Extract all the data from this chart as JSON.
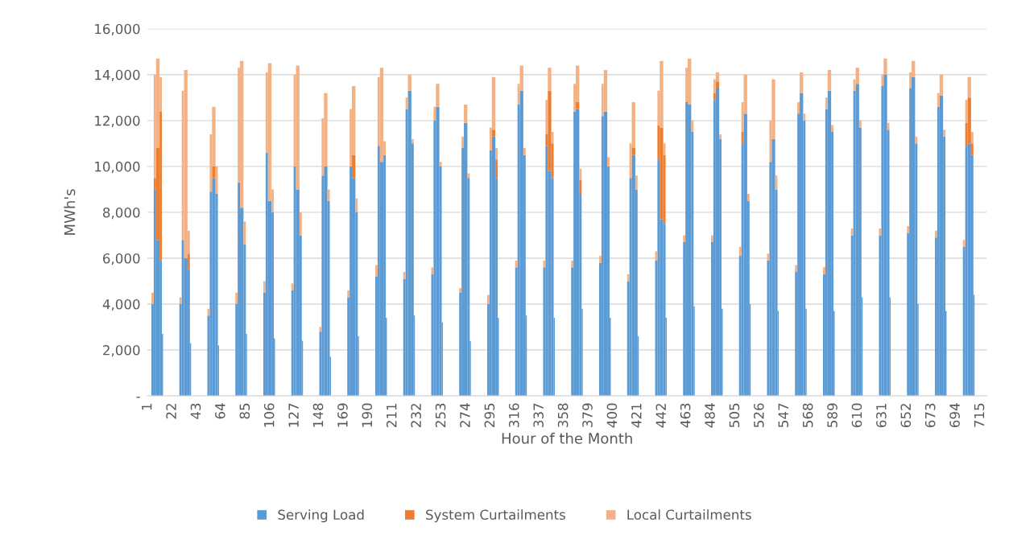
{
  "chart_data": {
    "type": "bar",
    "stacked": true,
    "xlabel": "Hour of the Month",
    "ylabel": "MWh's",
    "x": [
      3,
      4,
      6,
      8,
      11,
      13,
      14,
      27,
      28,
      30,
      32,
      35,
      37,
      38,
      51,
      52,
      54,
      56,
      59,
      61,
      62,
      75,
      76,
      78,
      80,
      83,
      85,
      86,
      99,
      100,
      102,
      104,
      107,
      109,
      110,
      123,
      124,
      126,
      128,
      131,
      133,
      134,
      147,
      148,
      150,
      152,
      155,
      157,
      158,
      171,
      172,
      174,
      176,
      179,
      181,
      182,
      195,
      196,
      198,
      200,
      203,
      205,
      206,
      219,
      220,
      222,
      224,
      227,
      229,
      230,
      243,
      244,
      246,
      248,
      251,
      253,
      254,
      267,
      268,
      270,
      272,
      275,
      277,
      278,
      291,
      292,
      294,
      296,
      299,
      301,
      302,
      315,
      316,
      318,
      320,
      323,
      325,
      326,
      339,
      340,
      342,
      344,
      347,
      349,
      350,
      363,
      364,
      366,
      368,
      371,
      373,
      374,
      387,
      388,
      390,
      392,
      395,
      397,
      398,
      411,
      412,
      414,
      416,
      419,
      421,
      422,
      435,
      436,
      438,
      440,
      443,
      445,
      446,
      459,
      460,
      462,
      464,
      467,
      469,
      470,
      483,
      484,
      486,
      488,
      491,
      493,
      494,
      507,
      508,
      510,
      512,
      515,
      517,
      518,
      531,
      532,
      534,
      536,
      539,
      541,
      542,
      555,
      556,
      558,
      560,
      563,
      565,
      566,
      579,
      580,
      582,
      584,
      587,
      589,
      590,
      603,
      604,
      606,
      608,
      611,
      613,
      614,
      627,
      628,
      630,
      632,
      635,
      637,
      638,
      651,
      652,
      654,
      656,
      659,
      661,
      662,
      675,
      676,
      678,
      680,
      683,
      685,
      686,
      699,
      700,
      702,
      704,
      707,
      709,
      710
    ],
    "series": [
      {
        "name": "Serving Load",
        "color": "#5b9bd5",
        "values": [
          0,
          4000,
          9000,
          6800,
          5900,
          2700,
          0,
          0,
          4000,
          6800,
          6000,
          5500,
          2300,
          0,
          0,
          3500,
          8900,
          9500,
          8800,
          2200,
          0,
          0,
          4000,
          9300,
          8200,
          6600,
          2700,
          0,
          0,
          4500,
          10600,
          8500,
          8000,
          2500,
          0,
          0,
          4600,
          10000,
          9000,
          7000,
          2400,
          0,
          0,
          2800,
          9600,
          10000,
          8500,
          1700,
          0,
          0,
          4300,
          10000,
          9500,
          8000,
          2600,
          0,
          0,
          5200,
          10900,
          10200,
          10500,
          3400,
          0,
          0,
          5100,
          12500,
          13300,
          11000,
          3500,
          0,
          0,
          5300,
          12000,
          12600,
          10000,
          3200,
          0,
          0,
          4500,
          10800,
          11900,
          9500,
          2400,
          0,
          0,
          4000,
          10700,
          11300,
          9500,
          3400,
          0,
          0,
          5600,
          12700,
          13300,
          10500,
          3500,
          0,
          0,
          5600,
          10900,
          9800,
          9500,
          3400,
          0,
          0,
          5600,
          12400,
          12500,
          8800,
          3800,
          0,
          0,
          5800,
          12200,
          12400,
          10000,
          3400,
          0,
          0,
          5000,
          9500,
          10500,
          9000,
          2600,
          0,
          0,
          5900,
          10300,
          7700,
          7500,
          3400,
          0,
          0,
          6700,
          12800,
          12700,
          11500,
          3900,
          0,
          0,
          6700,
          12900,
          13400,
          11200,
          3800,
          0,
          0,
          6100,
          11000,
          12300,
          8500,
          4000,
          0,
          0,
          5900,
          10200,
          11200,
          9000,
          3700,
          0,
          0,
          5400,
          12300,
          13200,
          12000,
          3800,
          0,
          0,
          5300,
          12500,
          13300,
          11500,
          3700,
          0,
          0,
          7000,
          13300,
          13600,
          11700,
          4300,
          0,
          0,
          7000,
          13500,
          14000,
          11600,
          4300,
          0,
          0,
          7100,
          13400,
          13900,
          11000,
          4000,
          0,
          0,
          6900,
          12600,
          13100,
          11300,
          3700,
          0,
          0,
          6500,
          10900,
          11000,
          10500,
          4400,
          0
        ]
      },
      {
        "name": "System Curtailments",
        "color": "#ed7d31",
        "values": [
          0,
          0,
          500,
          4000,
          6500,
          0,
          0,
          0,
          0,
          0,
          0,
          700,
          0,
          0,
          0,
          0,
          0,
          500,
          0,
          0,
          0,
          0,
          0,
          0,
          0,
          0,
          0,
          0,
          0,
          0,
          0,
          0,
          0,
          0,
          0,
          0,
          0,
          0,
          0,
          0,
          0,
          0,
          0,
          0,
          0,
          0,
          0,
          0,
          0,
          0,
          0,
          0,
          1000,
          0,
          0,
          0,
          0,
          0,
          0,
          0,
          0,
          0,
          0,
          0,
          0,
          0,
          0,
          0,
          0,
          0,
          0,
          0,
          0,
          0,
          0,
          0,
          0,
          0,
          0,
          0,
          0,
          0,
          0,
          0,
          0,
          0,
          0,
          300,
          800,
          0,
          0,
          0,
          0,
          0,
          0,
          0,
          0,
          0,
          0,
          0,
          500,
          3500,
          1500,
          0,
          0,
          0,
          0,
          0,
          300,
          600,
          0,
          0,
          0,
          0,
          0,
          0,
          0,
          0,
          0,
          0,
          0,
          0,
          300,
          0,
          0,
          0,
          0,
          0,
          1500,
          4000,
          3000,
          0,
          0,
          0,
          0,
          0,
          0,
          0,
          0,
          0,
          0,
          0,
          300,
          300,
          0,
          0,
          0,
          0,
          0,
          500,
          0,
          0,
          0,
          0,
          0,
          0,
          0,
          0,
          0,
          0,
          0,
          0,
          0,
          0,
          0,
          0,
          0,
          0,
          0,
          0,
          0,
          0,
          0,
          0,
          0,
          0,
          0,
          0,
          0,
          0,
          0,
          0,
          0,
          0,
          0,
          0,
          0,
          0,
          0,
          0,
          0,
          0,
          0,
          0,
          0,
          0,
          0,
          0,
          0,
          0,
          0,
          0,
          0,
          0,
          0,
          1000,
          2000,
          500,
          0,
          0
        ]
      },
      {
        "name": "Local Curtailments",
        "color": "#f4b183",
        "values": [
          0,
          500,
          4500,
          3900,
          1500,
          0,
          0,
          0,
          300,
          6500,
          8200,
          1000,
          0,
          0,
          0,
          300,
          2500,
          2600,
          1200,
          0,
          0,
          0,
          500,
          5000,
          6400,
          1000,
          0,
          0,
          0,
          500,
          3500,
          6000,
          1000,
          0,
          0,
          0,
          300,
          4000,
          5400,
          1000,
          0,
          0,
          0,
          200,
          2500,
          3200,
          500,
          0,
          0,
          0,
          300,
          2500,
          3000,
          600,
          0,
          0,
          0,
          500,
          3000,
          4100,
          600,
          0,
          0,
          0,
          300,
          500,
          700,
          200,
          0,
          0,
          0,
          300,
          600,
          1000,
          200,
          0,
          0,
          0,
          200,
          500,
          800,
          200,
          0,
          0,
          0,
          400,
          1000,
          2300,
          500,
          0,
          0,
          0,
          300,
          900,
          1100,
          300,
          0,
          0,
          0,
          300,
          1500,
          1000,
          500,
          0,
          0,
          0,
          300,
          1200,
          1600,
          500,
          0,
          0,
          0,
          300,
          1400,
          1800,
          400,
          0,
          0,
          0,
          300,
          1500,
          2000,
          600,
          0,
          0,
          0,
          400,
          1500,
          2900,
          500,
          0,
          0,
          0,
          300,
          1500,
          2000,
          500,
          0,
          0,
          0,
          300,
          600,
          400,
          200,
          0,
          0,
          0,
          400,
          1300,
          1700,
          300,
          0,
          0,
          0,
          300,
          1800,
          2600,
          600,
          0,
          0,
          0,
          300,
          500,
          900,
          300,
          0,
          0,
          0,
          300,
          500,
          900,
          300,
          0,
          0,
          0,
          300,
          500,
          700,
          300,
          0,
          0,
          0,
          300,
          500,
          700,
          300,
          0,
          0,
          0,
          300,
          700,
          700,
          300,
          0,
          0,
          0,
          300,
          600,
          900,
          300,
          0,
          0,
          0,
          300,
          1000,
          900,
          500,
          0,
          0
        ]
      }
    ],
    "xlim": [
      0.5,
      720.5
    ],
    "xticks": [
      1,
      22,
      43,
      64,
      85,
      106,
      127,
      148,
      169,
      190,
      211,
      232,
      253,
      274,
      295,
      316,
      337,
      358,
      379,
      400,
      421,
      442,
      463,
      484,
      505,
      526,
      547,
      568,
      589,
      610,
      631,
      652,
      673,
      694,
      715
    ],
    "ylim": [
      0,
      16000
    ],
    "yticks": [
      {
        "value": 0,
        "label": "-"
      },
      {
        "value": 2000,
        "label": "2,000"
      },
      {
        "value": 4000,
        "label": "4,000"
      },
      {
        "value": 6000,
        "label": "6,000"
      },
      {
        "value": 8000,
        "label": "8,000"
      },
      {
        "value": 10000,
        "label": "10,000"
      },
      {
        "value": 12000,
        "label": "12,000"
      },
      {
        "value": 14000,
        "label": "14,000"
      },
      {
        "value": 16000,
        "label": "16,000"
      }
    ],
    "grid": "y",
    "legend": "bottom"
  }
}
